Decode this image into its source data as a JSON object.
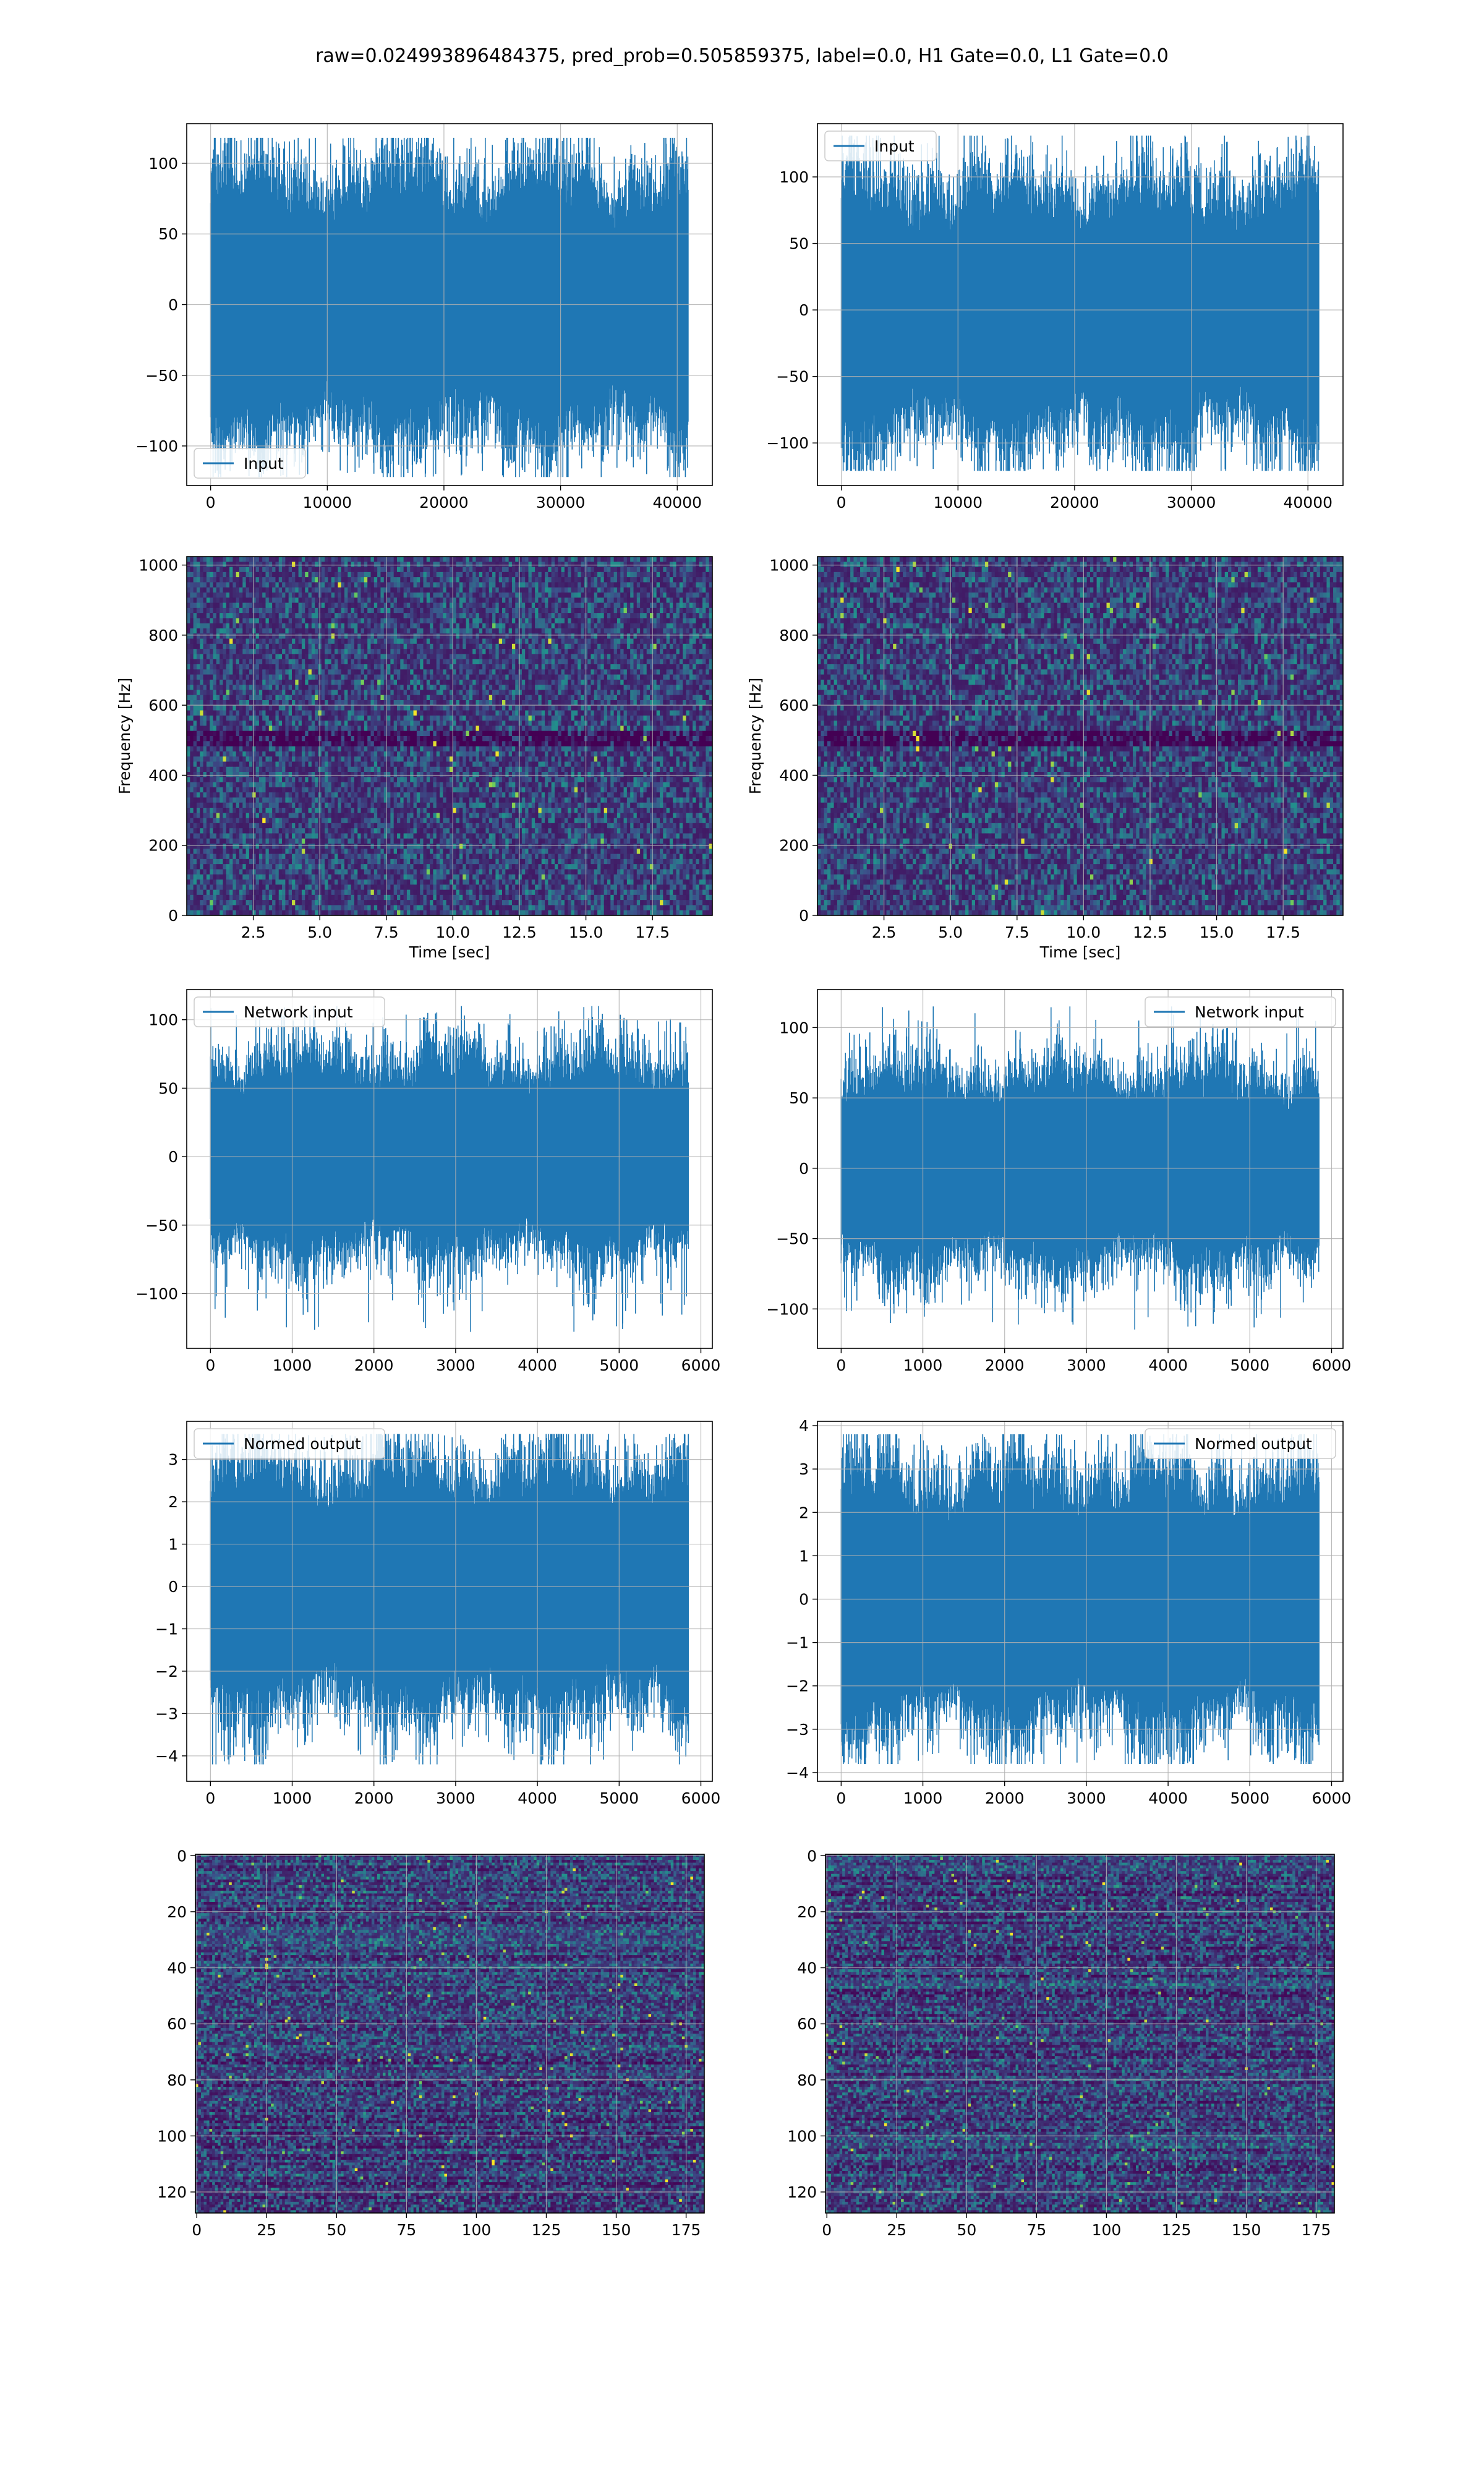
{
  "figure": {
    "suptitle": "raw=0.024993896484375, pred_prob=0.505859375, label=0.0, H1 Gate=0.0, L1 Gate=0.0",
    "line_color": "#1f77b4",
    "grid_color": "#b0b0b0"
  },
  "chart_data": [
    {
      "id": "input-left",
      "type": "line",
      "series": [
        {
          "name": "Input",
          "n_points": 40960,
          "amplitude_std": 32,
          "min": -122,
          "max": 118
        }
      ],
      "xlim": [
        -2048,
        43008
      ],
      "ylim": [
        -128,
        128
      ],
      "xticks": [
        0,
        10000,
        20000,
        30000,
        40000
      ],
      "xticklabels": [
        "0",
        "10000",
        "20000",
        "30000",
        "40000"
      ],
      "yticks": [
        -100,
        -50,
        0,
        50,
        100
      ],
      "yticklabels": [
        "−100",
        "−50",
        "0",
        "50",
        "100"
      ],
      "xlabel": "",
      "ylabel": "",
      "legend": "lower left",
      "grid": true
    },
    {
      "id": "input-right",
      "type": "line",
      "series": [
        {
          "name": "Input",
          "n_points": 40960,
          "amplitude_std": 33,
          "min": -121,
          "max": 131
        }
      ],
      "xlim": [
        -2048,
        43008
      ],
      "ylim": [
        -132,
        140
      ],
      "xticks": [
        0,
        10000,
        20000,
        30000,
        40000
      ],
      "xticklabels": [
        "0",
        "10000",
        "20000",
        "30000",
        "40000"
      ],
      "yticks": [
        -100,
        -50,
        0,
        50,
        100
      ],
      "yticklabels": [
        "−100",
        "−50",
        "0",
        "50",
        "100"
      ],
      "xlabel": "",
      "ylabel": "",
      "legend": "upper left",
      "grid": true
    },
    {
      "id": "spectrogram-left",
      "type": "heatmap",
      "xlim": [
        0,
        19.75
      ],
      "ylim": [
        0,
        1024
      ],
      "xticks": [
        2.5,
        5.0,
        7.5,
        10.0,
        12.5,
        15.0,
        17.5
      ],
      "xticklabels": [
        "2.5",
        "5.0",
        "7.5",
        "10.0",
        "12.5",
        "15.0",
        "17.5"
      ],
      "yticks": [
        0,
        200,
        400,
        600,
        800,
        1000
      ],
      "yticklabels": [
        "0",
        "200",
        "400",
        "600",
        "800",
        "1000"
      ],
      "xlabel": "Time [sec]",
      "ylabel": "Frequency [Hz]",
      "colormap": "viridis",
      "grid": true
    },
    {
      "id": "spectrogram-right",
      "type": "heatmap",
      "xlim": [
        0,
        19.75
      ],
      "ylim": [
        0,
        1024
      ],
      "xticks": [
        2.5,
        5.0,
        7.5,
        10.0,
        12.5,
        15.0,
        17.5
      ],
      "xticklabels": [
        "2.5",
        "5.0",
        "7.5",
        "10.0",
        "12.5",
        "15.0",
        "17.5"
      ],
      "yticks": [
        0,
        200,
        400,
        600,
        800,
        1000
      ],
      "yticklabels": [
        "0",
        "200",
        "400",
        "600",
        "800",
        "1000"
      ],
      "xlabel": "Time [sec]",
      "ylabel": "Frequency [Hz]",
      "colormap": "viridis",
      "grid": true
    },
    {
      "id": "network-input-left",
      "type": "line",
      "series": [
        {
          "name": "Network input",
          "n_points": 5850,
          "amplitude_std": 25,
          "min": -128,
          "max": 110
        }
      ],
      "xlim": [
        -290,
        6140
      ],
      "ylim": [
        -140,
        122
      ],
      "xticks": [
        0,
        1000,
        2000,
        3000,
        4000,
        5000,
        6000
      ],
      "xticklabels": [
        "0",
        "1000",
        "2000",
        "3000",
        "4000",
        "5000",
        "6000"
      ],
      "yticks": [
        -100,
        -50,
        0,
        50,
        100
      ],
      "yticklabels": [
        "−100",
        "−50",
        "0",
        "50",
        "100"
      ],
      "xlabel": "",
      "ylabel": "",
      "legend": "upper left",
      "grid": true
    },
    {
      "id": "network-input-right",
      "type": "line",
      "series": [
        {
          "name": "Network input",
          "n_points": 5850,
          "amplitude_std": 24,
          "min": -116,
          "max": 115
        }
      ],
      "xlim": [
        -290,
        6140
      ],
      "ylim": [
        -128,
        127
      ],
      "xticks": [
        0,
        1000,
        2000,
        3000,
        4000,
        5000,
        6000
      ],
      "xticklabels": [
        "0",
        "1000",
        "2000",
        "3000",
        "4000",
        "5000",
        "6000"
      ],
      "yticks": [
        -100,
        -50,
        0,
        50,
        100
      ],
      "yticklabels": [
        "−100",
        "−50",
        "0",
        "50",
        "100"
      ],
      "xlabel": "",
      "ylabel": "",
      "legend": "upper right",
      "grid": true
    },
    {
      "id": "normed-output-left",
      "type": "line",
      "series": [
        {
          "name": "Normed output",
          "n_points": 5850,
          "amplitude_std": 1,
          "min": -4.2,
          "max": 3.6
        }
      ],
      "xlim": [
        -290,
        6140
      ],
      "ylim": [
        -4.6,
        3.9
      ],
      "xticks": [
        0,
        1000,
        2000,
        3000,
        4000,
        5000,
        6000
      ],
      "xticklabels": [
        "0",
        "1000",
        "2000",
        "3000",
        "4000",
        "5000",
        "6000"
      ],
      "yticks": [
        -4,
        -3,
        -2,
        -1,
        0,
        1,
        2,
        3
      ],
      "yticklabels": [
        "−4",
        "−3",
        "−2",
        "−1",
        "0",
        "1",
        "2",
        "3"
      ],
      "xlabel": "",
      "ylabel": "",
      "legend": "upper left",
      "grid": true
    },
    {
      "id": "normed-output-right",
      "type": "line",
      "series": [
        {
          "name": "Normed output",
          "n_points": 5850,
          "amplitude_std": 1,
          "min": -3.8,
          "max": 3.8
        }
      ],
      "xlim": [
        -290,
        6140
      ],
      "ylim": [
        -4.2,
        4.1
      ],
      "xticks": [
        0,
        1000,
        2000,
        3000,
        4000,
        5000,
        6000
      ],
      "xticklabels": [
        "0",
        "1000",
        "2000",
        "3000",
        "4000",
        "5000",
        "6000"
      ],
      "yticks": [
        -4,
        -3,
        -2,
        -1,
        0,
        1,
        2,
        3,
        4
      ],
      "yticklabels": [
        "−4",
        "−3",
        "−2",
        "−1",
        "0",
        "1",
        "2",
        "3",
        "4"
      ],
      "xlabel": "",
      "ylabel": "",
      "legend": "upper right",
      "grid": true
    },
    {
      "id": "image-left",
      "type": "heatmap",
      "rows": 128,
      "cols": 182,
      "xlim": [
        -0.5,
        181.5
      ],
      "ylim": [
        127.5,
        -0.5
      ],
      "xticks": [
        0,
        25,
        50,
        75,
        100,
        125,
        150,
        175
      ],
      "xticklabels": [
        "0",
        "25",
        "50",
        "75",
        "100",
        "125",
        "150",
        "175"
      ],
      "yticks": [
        0,
        20,
        40,
        60,
        80,
        100,
        120
      ],
      "yticklabels": [
        "0",
        "20",
        "40",
        "60",
        "80",
        "100",
        "120"
      ],
      "xlabel": "",
      "ylabel": "",
      "colormap": "viridis",
      "grid": true
    },
    {
      "id": "image-right",
      "type": "heatmap",
      "rows": 128,
      "cols": 182,
      "xlim": [
        -0.5,
        181.5
      ],
      "ylim": [
        127.5,
        -0.5
      ],
      "xticks": [
        0,
        25,
        50,
        75,
        100,
        125,
        150,
        175
      ],
      "xticklabels": [
        "0",
        "25",
        "50",
        "75",
        "100",
        "125",
        "150",
        "175"
      ],
      "yticks": [
        0,
        20,
        40,
        60,
        80,
        100,
        120
      ],
      "yticklabels": [
        "0",
        "20",
        "40",
        "60",
        "80",
        "100",
        "120"
      ],
      "xlabel": "",
      "ylabel": "",
      "colormap": "viridis",
      "grid": true
    }
  ]
}
